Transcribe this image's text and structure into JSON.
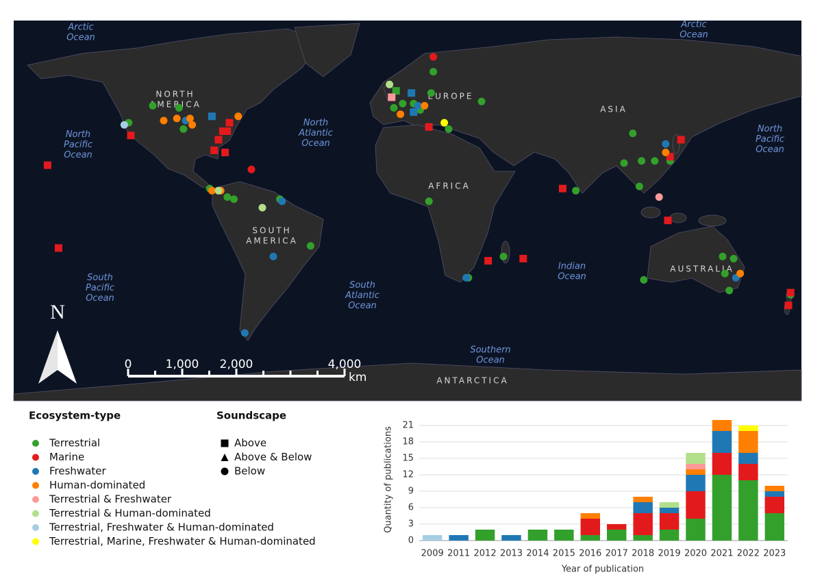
{
  "map": {
    "ocean_labels": [
      "Arctic Ocean",
      "Arctic Ocean",
      "North Pacific Ocean",
      "North Pacific Ocean",
      "North Atlantic Ocean",
      "South Pacific Ocean",
      "South Atlantic Ocean",
      "Indian Ocean",
      "Southern Ocean"
    ],
    "continent_labels": [
      "NORTH AMERICA",
      "EUROPE",
      "ASIA",
      "AFRICA",
      "SOUTH AMERICA",
      "AUSTRALIA",
      "ANTARCTICA"
    ],
    "north": "N",
    "scale": {
      "ticks": [
        0,
        {
          "value": 1000,
          "label": "1,000"
        },
        {
          "value": 2000,
          "label": "2,000"
        },
        {
          "value": 4000,
          "label": "4,000"
        }
      ],
      "unit": "km"
    },
    "points": [
      {
        "ecosystem": "Terrestrial",
        "soundscape": "Below",
        "coords": [
          [
            -110,
            47
          ],
          [
            -98,
            46
          ],
          [
            -121,
            39
          ],
          [
            -96,
            36
          ],
          [
            -84,
            8
          ],
          [
            -76,
            4
          ],
          [
            -73,
            3
          ],
          [
            -52,
            3
          ],
          [
            -38,
            -19
          ],
          [
            18,
            63
          ],
          [
            17,
            53
          ],
          [
            4,
            48
          ],
          [
            9,
            48
          ],
          [
            12,
            45
          ],
          [
            0,
            46
          ],
          [
            40,
            49
          ],
          [
            25,
            36
          ],
          [
            16,
            2
          ],
          [
            50,
            -24
          ],
          [
            34,
            -34
          ],
          [
            83,
            7
          ],
          [
            109,
            34
          ],
          [
            105,
            20
          ],
          [
            113,
            21
          ],
          [
            119,
            21
          ],
          [
            126,
            21
          ],
          [
            112,
            9
          ],
          [
            150,
            -24
          ],
          [
            155,
            -25
          ],
          [
            151,
            -32
          ],
          [
            153,
            -40
          ],
          [
            114,
            -35
          ],
          [
            181,
            -42
          ]
        ]
      },
      {
        "ecosystem": "Terrestrial",
        "soundscape": "Above",
        "coords": [
          [
            1,
            54
          ]
        ]
      },
      {
        "ecosystem": "Marine",
        "soundscape": "Below",
        "coords": [
          [
            18,
            70
          ],
          [
            -158,
            19
          ],
          [
            -65,
            17
          ]
        ]
      },
      {
        "ecosystem": "Marine",
        "soundscape": "Above",
        "coords": [
          [
            -158,
            19
          ],
          [
            -120,
            33
          ],
          [
            -75,
            39
          ],
          [
            -76,
            35
          ],
          [
            -78,
            35
          ],
          [
            -80,
            31
          ],
          [
            -82,
            26
          ],
          [
            -77,
            25
          ],
          [
            -153,
            -20
          ],
          [
            16,
            37
          ],
          [
            43,
            -26
          ],
          [
            59,
            -25
          ],
          [
            77,
            8
          ],
          [
            131,
            31
          ],
          [
            126,
            23
          ],
          [
            125,
            -7
          ],
          [
            181,
            -41
          ],
          [
            180,
            -47
          ]
        ]
      },
      {
        "ecosystem": "Freshwater",
        "soundscape": "Below",
        "coords": [
          [
            -95,
            40
          ],
          [
            -51,
            2
          ],
          [
            -55,
            -24
          ],
          [
            -68,
            -60
          ],
          [
            11,
            47
          ],
          [
            33,
            -34
          ],
          [
            124,
            29
          ],
          [
            156,
            -34
          ]
        ]
      },
      {
        "ecosystem": "Freshwater",
        "soundscape": "Above",
        "coords": [
          [
            -83,
            42
          ],
          [
            8,
            53
          ],
          [
            9,
            44
          ]
        ]
      },
      {
        "ecosystem": "Human-dominated",
        "soundscape": "Below",
        "coords": [
          [
            -105,
            40
          ],
          [
            -99,
            41
          ],
          [
            -93,
            41
          ],
          [
            -92,
            38
          ],
          [
            -71,
            42
          ],
          [
            -83,
            7
          ],
          [
            -79,
            7
          ],
          [
            3,
            43
          ],
          [
            14,
            47
          ],
          [
            124,
            25
          ],
          [
            158,
            -32
          ]
        ]
      },
      {
        "ecosystem": "Terrestrial & Freshwater",
        "soundscape": "Above",
        "coords": [
          [
            -1,
            51
          ]
        ]
      },
      {
        "ecosystem": "Terrestrial & Freshwater",
        "soundscape": "Below",
        "coords": [
          [
            121,
            4
          ]
        ]
      },
      {
        "ecosystem": "Terrestrial & Human-dominated",
        "soundscape": "Below",
        "coords": [
          [
            -80,
            7
          ],
          [
            -60,
            -1
          ],
          [
            -2,
            57
          ]
        ]
      },
      {
        "ecosystem": "Terrestrial, Freshwater & Human-dominated",
        "soundscape": "Below",
        "coords": [
          [
            -123,
            38
          ]
        ]
      },
      {
        "ecosystem": "Terrestrial, Marine, Freshwater & Human-dominated",
        "soundscape": "Below",
        "coords": [
          [
            23,
            39
          ]
        ]
      }
    ]
  },
  "legend": {
    "ecosystem_title": "Ecosystem-type",
    "soundscape_title": "Soundscape",
    "soundscape": [
      "Above",
      "Above & Below",
      "Below"
    ]
  },
  "chart_data": {
    "type": "stacked_bar",
    "x_label": "Year of publication",
    "y_label": "Quantity of publications",
    "categories": [
      "2009",
      "2011",
      "2012",
      "2013",
      "2014",
      "2015",
      "2016",
      "2017",
      "2018",
      "2019",
      "2020",
      "2021",
      "2022",
      "2023"
    ],
    "series": [
      {
        "name": "Terrestrial",
        "color": "#33a02c",
        "values": [
          0,
          0,
          2,
          0,
          2,
          2,
          1,
          2,
          1,
          2,
          4,
          12,
          11,
          5
        ]
      },
      {
        "name": "Marine",
        "color": "#e31a1c",
        "values": [
          0,
          0,
          0,
          0,
          0,
          0,
          3,
          1,
          4,
          3,
          5,
          4,
          3,
          3
        ]
      },
      {
        "name": "Freshwater",
        "color": "#1f78b4",
        "values": [
          0,
          1,
          0,
          1,
          0,
          0,
          0,
          0,
          2,
          1,
          3,
          4,
          2,
          1
        ]
      },
      {
        "name": "Human-dominated",
        "color": "#ff7f00",
        "values": [
          0,
          0,
          0,
          0,
          0,
          0,
          1,
          0,
          1,
          0,
          1,
          2,
          4,
          1
        ]
      },
      {
        "name": "Terrestrial & Freshwater",
        "color": "#fb9a99",
        "values": [
          0,
          0,
          0,
          0,
          0,
          0,
          0,
          0,
          0,
          0,
          1,
          0,
          0,
          0
        ]
      },
      {
        "name": "Terrestrial & Human-dominated",
        "color": "#b2df8a",
        "values": [
          0,
          0,
          0,
          0,
          0,
          0,
          0,
          0,
          0,
          1,
          2,
          0,
          0,
          0
        ]
      },
      {
        "name": "Terrestrial, Freshwater & Human-dominated",
        "color": "#a6cee3",
        "values": [
          1,
          0,
          0,
          0,
          0,
          0,
          0,
          0,
          0,
          0,
          0,
          0,
          0,
          0
        ]
      },
      {
        "name": "Terrestrial, Marine, Freshwater & Human-dominated",
        "color": "#ffff00",
        "values": [
          0,
          0,
          0,
          0,
          0,
          0,
          0,
          0,
          0,
          0,
          0,
          0,
          1,
          0
        ]
      }
    ],
    "ylim": [
      0,
      22.5
    ],
    "yticks": [
      0,
      3,
      6,
      9,
      12,
      15,
      18,
      21
    ],
    "grid": true
  }
}
